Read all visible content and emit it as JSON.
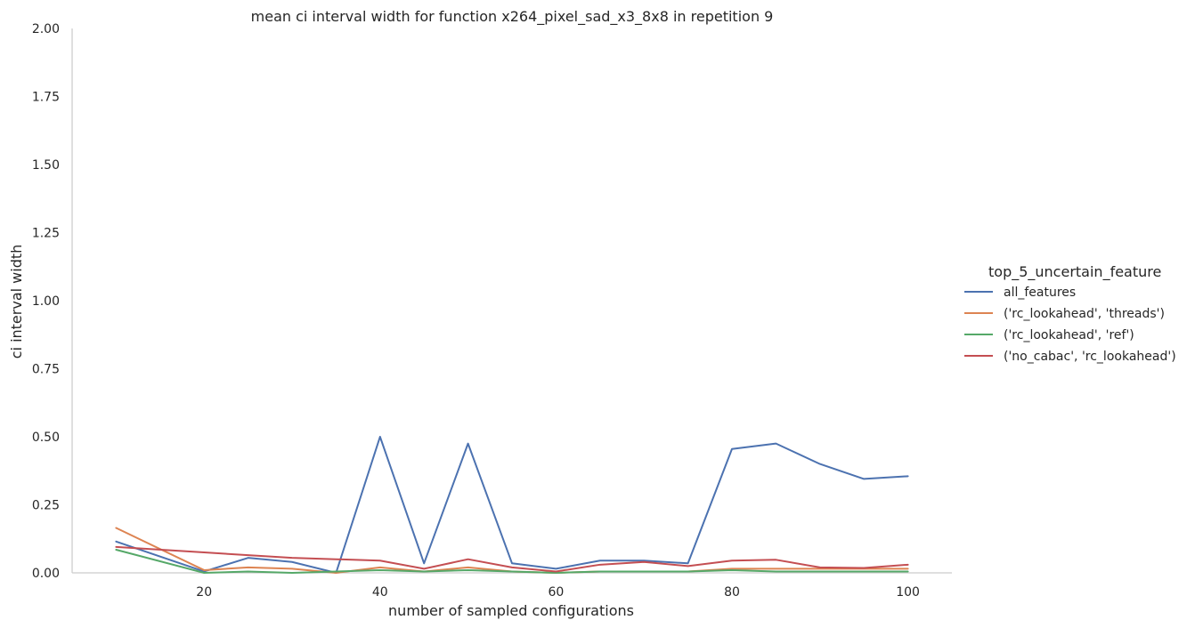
{
  "chart_data": {
    "type": "line",
    "title": "mean ci interval width for function x264_pixel_sad_x3_8x8 in repetition 9",
    "xlabel": "number of sampled configurations",
    "ylabel": "ci interval width",
    "xlim": [
      5,
      105
    ],
    "ylim": [
      0,
      2.0
    ],
    "xticks": [
      20,
      40,
      60,
      80,
      100
    ],
    "yticks": [
      0.0,
      0.25,
      0.5,
      0.75,
      1.0,
      1.25,
      1.5,
      1.75,
      2.0
    ],
    "ytick_labels": [
      "0.00",
      "0.25",
      "0.50",
      "0.75",
      "1.00",
      "1.25",
      "1.50",
      "1.75",
      "2.00"
    ],
    "grid": false,
    "legend": {
      "title": "top_5_uncertain_feature",
      "placement": "right"
    },
    "x": [
      10,
      20,
      25,
      30,
      35,
      40,
      45,
      50,
      55,
      60,
      65,
      70,
      75,
      80,
      85,
      90,
      95,
      100
    ],
    "series": [
      {
        "name": "all_features",
        "color": "#4c72b0",
        "values": [
          0.115,
          0.005,
          0.055,
          0.04,
          0.0,
          0.5,
          0.035,
          0.475,
          0.035,
          0.015,
          0.045,
          0.045,
          0.035,
          0.455,
          0.475,
          0.4,
          0.345,
          0.355
        ]
      },
      {
        "name": "('rc_lookahead', 'threads')",
        "color": "#dd8452",
        "values": [
          0.165,
          0.01,
          0.02,
          0.015,
          0.0,
          0.02,
          0.005,
          0.02,
          0.005,
          0.0,
          0.005,
          0.005,
          0.005,
          0.015,
          0.015,
          0.015,
          0.015,
          0.015
        ]
      },
      {
        "name": "('rc_lookahead', 'ref')",
        "color": "#55a868",
        "values": [
          0.085,
          0.0,
          0.005,
          0.0,
          0.005,
          0.01,
          0.005,
          0.01,
          0.005,
          0.0,
          0.005,
          0.005,
          0.005,
          0.01,
          0.005,
          0.005,
          0.005,
          0.005
        ]
      },
      {
        "name": "('no_cabac', 'rc_lookahead')",
        "color": "#c44e52",
        "values": [
          0.095,
          0.075,
          0.065,
          0.055,
          0.05,
          0.045,
          0.015,
          0.05,
          0.02,
          0.005,
          0.03,
          0.04,
          0.025,
          0.045,
          0.048,
          0.02,
          0.018,
          0.03
        ]
      }
    ]
  }
}
